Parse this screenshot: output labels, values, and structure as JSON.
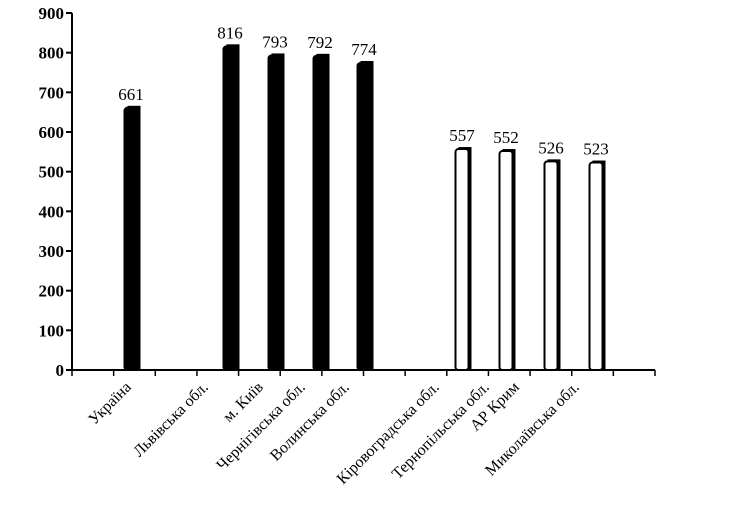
{
  "chart_data": {
    "type": "bar",
    "title": "",
    "xlabel": "",
    "ylabel": "",
    "ylim": [
      0,
      900
    ],
    "yticks": [
      0,
      100,
      200,
      300,
      400,
      500,
      600,
      700,
      800,
      900
    ],
    "grid": false,
    "legend": "none",
    "categories": [
      "Україна",
      "Львівська обл.",
      "м. Київ",
      "Чернігівська обл.",
      "Волинська обл.",
      "Кіровоградська обл.",
      "Тернопільська обл.",
      "АР Крим",
      "Миколаївська обл."
    ],
    "bars": [
      {
        "value": 661,
        "style": "solid"
      },
      {
        "value": 816,
        "style": "solid"
      },
      {
        "value": 793,
        "style": "solid"
      },
      {
        "value": 792,
        "style": "solid"
      },
      {
        "value": 774,
        "style": "solid"
      },
      {
        "value": 557,
        "style": "hollow"
      },
      {
        "value": 552,
        "style": "hollow"
      },
      {
        "value": 526,
        "style": "hollow"
      },
      {
        "value": 523,
        "style": "hollow"
      }
    ],
    "colors": {
      "solid": "#000000",
      "hollow": "#ffffff",
      "axis": "#000000"
    }
  }
}
